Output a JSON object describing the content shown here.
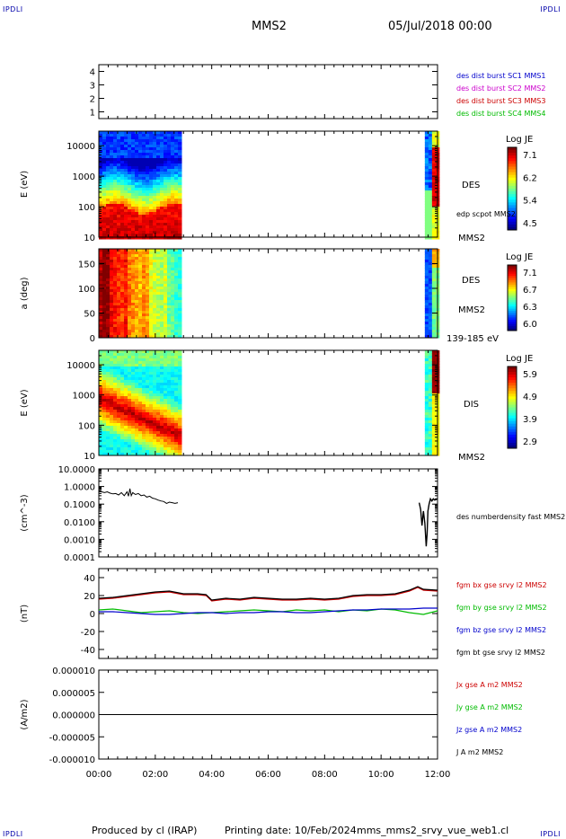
{
  "header": {
    "corner_tl": "IPDLI",
    "corner_tr": "IPDLI",
    "spacecraft": "MMS2",
    "date": "05/Jul/2018 00:00"
  },
  "footer": {
    "produced_by": "Produced by cl (IRAP)",
    "printing_date": "Printing date: 10/Feb/2024",
    "product": "mms_mms2_srvy_vue_web1.cl",
    "corner_bl": "IPDLI",
    "corner_br": "IPDLI"
  },
  "chart_data": [
    {
      "type": "availability",
      "xlim": [
        "00:00",
        "12:00"
      ],
      "ylim": [
        0.5,
        4.5
      ],
      "yticks": [
        "1",
        "2",
        "3",
        "4"
      ],
      "legend": [
        {
          "label": "des dist burst SC1 MMS1",
          "color": "#0000cc"
        },
        {
          "label": "des dist burst SC2 MMS2",
          "color": "#cc00cc"
        },
        {
          "label": "des dist burst SC3 MMS3",
          "color": "#cc0000"
        },
        {
          "label": "des dist burst SC4 MMS4",
          "color": "#00bb00"
        }
      ],
      "segments": []
    },
    {
      "type": "heatmap",
      "ylabel": "E (eV)",
      "yscale": "log",
      "ylim": [
        10,
        30000
      ],
      "yticks": [
        "10",
        "100",
        "1000",
        "10000"
      ],
      "side_labels": [
        "DES",
        "edp scpot MMS2",
        "MMS2"
      ],
      "colorbar": {
        "title": "Log JE",
        "ticks": [
          "7.1",
          "6.2",
          "5.4",
          "4.5"
        ],
        "min": 4.5,
        "max": 7.4
      },
      "data_intervals": [
        [
          "00:00",
          "02:50"
        ],
        [
          "11:33",
          "12:00"
        ]
      ],
      "profile": "electron_energy"
    },
    {
      "type": "heatmap",
      "ylabel": "a (deg)",
      "yscale": "linear",
      "ylim": [
        0,
        180
      ],
      "yticks": [
        "0",
        "50",
        "100",
        "150"
      ],
      "side_labels": [
        "DES",
        "MMS2",
        "139-185 eV"
      ],
      "colorbar": {
        "title": "Log JE",
        "ticks": [
          "7.1",
          "6.7",
          "6.3",
          "6.0"
        ],
        "min": 6.0,
        "max": 7.2
      },
      "data_intervals": [
        [
          "00:00",
          "02:50"
        ],
        [
          "11:33",
          "12:00"
        ]
      ],
      "profile": "pitch_angle"
    },
    {
      "type": "heatmap",
      "ylabel": "E (eV)",
      "yscale": "log",
      "ylim": [
        10,
        30000
      ],
      "yticks": [
        "10",
        "100",
        "1000",
        "10000"
      ],
      "side_labels": [
        "DIS",
        "MMS2"
      ],
      "colorbar": {
        "title": "Log JE",
        "ticks": [
          "5.9",
          "4.9",
          "3.9",
          "2.9"
        ],
        "min": 2.9,
        "max": 6.0
      },
      "data_intervals": [
        [
          "00:00",
          "02:50"
        ],
        [
          "11:33",
          "12:00"
        ]
      ],
      "profile": "ion_energy"
    },
    {
      "type": "line",
      "ylabel": "(cm^-3)",
      "yscale": "log",
      "ylim": [
        0.0001,
        10
      ],
      "yticks": [
        "10.0000",
        "1.0000",
        "0.1000",
        "0.0100",
        "0.0010",
        "0.0001"
      ],
      "series": [
        {
          "name": "des numberdensity fast MMS2",
          "color": "#000000",
          "points": [
            [
              0.0,
              0.55
            ],
            [
              0.1,
              0.5
            ],
            [
              0.2,
              0.45
            ],
            [
              0.3,
              0.5
            ],
            [
              0.4,
              0.42
            ],
            [
              0.5,
              0.38
            ],
            [
              0.6,
              0.4
            ],
            [
              0.7,
              0.33
            ],
            [
              0.8,
              0.45
            ],
            [
              0.9,
              0.3
            ],
            [
              1.0,
              0.5
            ],
            [
              1.05,
              0.28
            ],
            [
              1.1,
              0.75
            ],
            [
              1.15,
              0.3
            ],
            [
              1.2,
              0.45
            ],
            [
              1.3,
              0.35
            ],
            [
              1.4,
              0.4
            ],
            [
              1.5,
              0.3
            ],
            [
              1.6,
              0.33
            ],
            [
              1.7,
              0.25
            ],
            [
              1.8,
              0.28
            ],
            [
              1.9,
              0.22
            ],
            [
              2.0,
              0.2
            ],
            [
              2.1,
              0.17
            ],
            [
              2.2,
              0.15
            ],
            [
              2.3,
              0.14
            ],
            [
              2.4,
              0.11
            ],
            [
              2.5,
              0.13
            ],
            [
              2.6,
              0.12
            ],
            [
              2.7,
              0.11
            ],
            [
              2.8,
              0.12
            ]
          ],
          "points2": [
            [
              11.35,
              0.12
            ],
            [
              11.4,
              0.05
            ],
            [
              11.45,
              0.006
            ],
            [
              11.5,
              0.04
            ],
            [
              11.55,
              0.008
            ],
            [
              11.6,
              0.0004
            ],
            [
              11.63,
              0.002
            ],
            [
              11.66,
              0.04
            ],
            [
              11.7,
              0.1
            ],
            [
              11.75,
              0.2
            ],
            [
              11.8,
              0.15
            ],
            [
              11.85,
              0.2
            ],
            [
              11.9,
              0.17
            ],
            [
              12.0,
              0.2
            ]
          ]
        }
      ]
    },
    {
      "type": "line",
      "ylabel": "(nT)",
      "ylim": [
        -50,
        50
      ],
      "yticks": [
        "40",
        "20",
        "0",
        "-20",
        "-40"
      ],
      "series": [
        {
          "name": "fgm bx gse srvy l2 MMS2",
          "color": "#cc0000",
          "points": [
            [
              0,
              16
            ],
            [
              0.5,
              17
            ],
            [
              1,
              19
            ],
            [
              1.5,
              21
            ],
            [
              2,
              23
            ],
            [
              2.5,
              24
            ],
            [
              3,
              21
            ],
            [
              3.5,
              21
            ],
            [
              3.8,
              20
            ],
            [
              4,
              14
            ],
            [
              4.5,
              16
            ],
            [
              5,
              15
            ],
            [
              5.5,
              17
            ],
            [
              6,
              16
            ],
            [
              6.5,
              15
            ],
            [
              7,
              15
            ],
            [
              7.5,
              16
            ],
            [
              8,
              15
            ],
            [
              8.5,
              16
            ],
            [
              9,
              19
            ],
            [
              9.5,
              20
            ],
            [
              10,
              20
            ],
            [
              10.5,
              21
            ],
            [
              11,
              25
            ],
            [
              11.3,
              29
            ],
            [
              11.5,
              26
            ],
            [
              12,
              25
            ]
          ]
        },
        {
          "name": "fgm by gse srvy l2 MMS2",
          "color": "#00bb00",
          "points": [
            [
              0,
              4
            ],
            [
              0.5,
              5
            ],
            [
              1,
              3
            ],
            [
              1.5,
              1
            ],
            [
              2,
              2
            ],
            [
              2.5,
              3
            ],
            [
              3,
              1
            ],
            [
              3.5,
              0
            ],
            [
              4,
              1
            ],
            [
              4.5,
              2
            ],
            [
              5,
              3
            ],
            [
              5.5,
              4
            ],
            [
              6,
              3
            ],
            [
              6.5,
              2
            ],
            [
              7,
              4
            ],
            [
              7.5,
              3
            ],
            [
              8,
              4
            ],
            [
              8.5,
              2
            ],
            [
              9,
              4
            ],
            [
              9.5,
              3
            ],
            [
              10,
              5
            ],
            [
              10.5,
              4
            ],
            [
              11,
              1
            ],
            [
              11.5,
              -1
            ],
            [
              12,
              3
            ]
          ]
        },
        {
          "name": "fgm bz gse srvy l2 MMS2",
          "color": "#0000cc",
          "points": [
            [
              0,
              2
            ],
            [
              0.5,
              2
            ],
            [
              1,
              1
            ],
            [
              1.5,
              0
            ],
            [
              2,
              -1
            ],
            [
              2.5,
              -1
            ],
            [
              3,
              0
            ],
            [
              3.5,
              1
            ],
            [
              4,
              1
            ],
            [
              4.5,
              0
            ],
            [
              5,
              1
            ],
            [
              5.5,
              1
            ],
            [
              6,
              2
            ],
            [
              6.5,
              2
            ],
            [
              7,
              1
            ],
            [
              7.5,
              1
            ],
            [
              8,
              2
            ],
            [
              8.5,
              3
            ],
            [
              9,
              4
            ],
            [
              9.5,
              4
            ],
            [
              10,
              5
            ],
            [
              10.5,
              5
            ],
            [
              11,
              5
            ],
            [
              11.5,
              6
            ],
            [
              12,
              6
            ]
          ]
        },
        {
          "name": "fgm bt gse srvy l2 MMS2",
          "color": "#000000",
          "points": [
            [
              0,
              17
            ],
            [
              0.5,
              18
            ],
            [
              1,
              20
            ],
            [
              1.5,
              22
            ],
            [
              2,
              24
            ],
            [
              2.5,
              25
            ],
            [
              3,
              22
            ],
            [
              3.5,
              22
            ],
            [
              3.8,
              21
            ],
            [
              4,
              15
            ],
            [
              4.5,
              17
            ],
            [
              5,
              16
            ],
            [
              5.5,
              18
            ],
            [
              6,
              17
            ],
            [
              6.5,
              16
            ],
            [
              7,
              16
            ],
            [
              7.5,
              17
            ],
            [
              8,
              16
            ],
            [
              8.5,
              17
            ],
            [
              9,
              20
            ],
            [
              9.5,
              21
            ],
            [
              10,
              21
            ],
            [
              10.5,
              22
            ],
            [
              11,
              26
            ],
            [
              11.3,
              30
            ],
            [
              11.5,
              27
            ],
            [
              12,
              26
            ]
          ]
        }
      ]
    },
    {
      "type": "line",
      "ylabel": "(A/m2)",
      "ylim": [
        -1e-05,
        1e-05
      ],
      "yticks": [
        "0.000010",
        "0.000005",
        "0.000000",
        "-0.000005",
        "-0.000010"
      ],
      "series": [
        {
          "name": "Jx gse A m2 MMS2",
          "color": "#cc0000",
          "points": [
            [
              0,
              0
            ],
            [
              12,
              0
            ]
          ]
        },
        {
          "name": "Jy gse A m2 MMS2",
          "color": "#00bb00",
          "points": [
            [
              0,
              0
            ],
            [
              12,
              0
            ]
          ]
        },
        {
          "name": "Jz gse A m2 MMS2",
          "color": "#0000cc",
          "points": [
            [
              0,
              0
            ],
            [
              12,
              0
            ]
          ]
        },
        {
          "name": "J A m2 MMS2",
          "color": "#000000",
          "points": [
            [
              0,
              0
            ],
            [
              12,
              0
            ]
          ]
        }
      ]
    }
  ],
  "xaxis": {
    "ticks": [
      "00:00",
      "02:00",
      "04:00",
      "06:00",
      "08:00",
      "10:00",
      "12:00"
    ]
  }
}
